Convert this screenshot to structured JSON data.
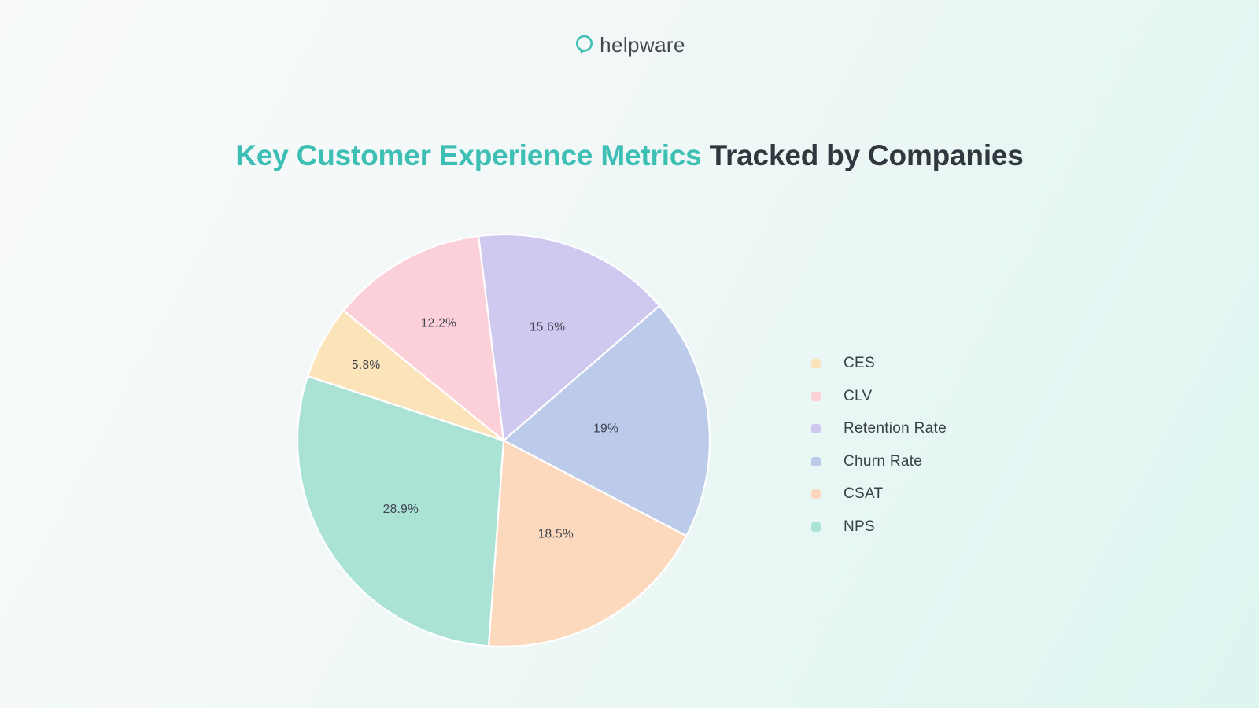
{
  "logo": {
    "text": "helpware",
    "icon": "speech-bubble-icon",
    "brand_color": "#3ebeb3",
    "text_color": "#45494f"
  },
  "title": {
    "highlight": "Key Customer Experience Metrics",
    "rest": "Tracked by Companies",
    "highlight_color": "#3dbfb4",
    "rest_color": "#31373e"
  },
  "theme": {
    "bg_start": "#f9fbfb",
    "bg_end": "#dcf5f0",
    "slice_divider": "#ffffff",
    "label_color": "#3d424d",
    "legend_text_color": "#3a4049"
  },
  "chart_data": {
    "type": "pie",
    "title": "Key Customer Experience Metrics Tracked by Companies",
    "slices": [
      {
        "label": "Retention Rate",
        "value": 15.6,
        "display": "15.6%",
        "color": "#cfc8ef"
      },
      {
        "label": "Churn Rate",
        "value": 19.0,
        "display": "19%",
        "color": "#bccbea"
      },
      {
        "label": "CSAT",
        "value": 18.5,
        "display": "18.5%",
        "color": "#fcd9bd"
      },
      {
        "label": "NPS",
        "value": 28.9,
        "display": "28.9%",
        "color": "#abe2d6"
      },
      {
        "label": "CES",
        "value": 5.8,
        "display": "5.8%",
        "color": "#fce4ba"
      },
      {
        "label": "CLV",
        "value": 12.2,
        "display": "12.2%",
        "color": "#fbd0d9"
      }
    ],
    "start_angle_deg": -7,
    "direction": "clockwise",
    "label_radius_frac": [
      0.59,
      0.5,
      0.52,
      0.6,
      0.76,
      0.65
    ],
    "legend_order": [
      "CES",
      "CLV",
      "Retention Rate",
      "Churn Rate",
      "CSAT",
      "NPS"
    ],
    "legend_position": "right",
    "labels_inside": true
  }
}
